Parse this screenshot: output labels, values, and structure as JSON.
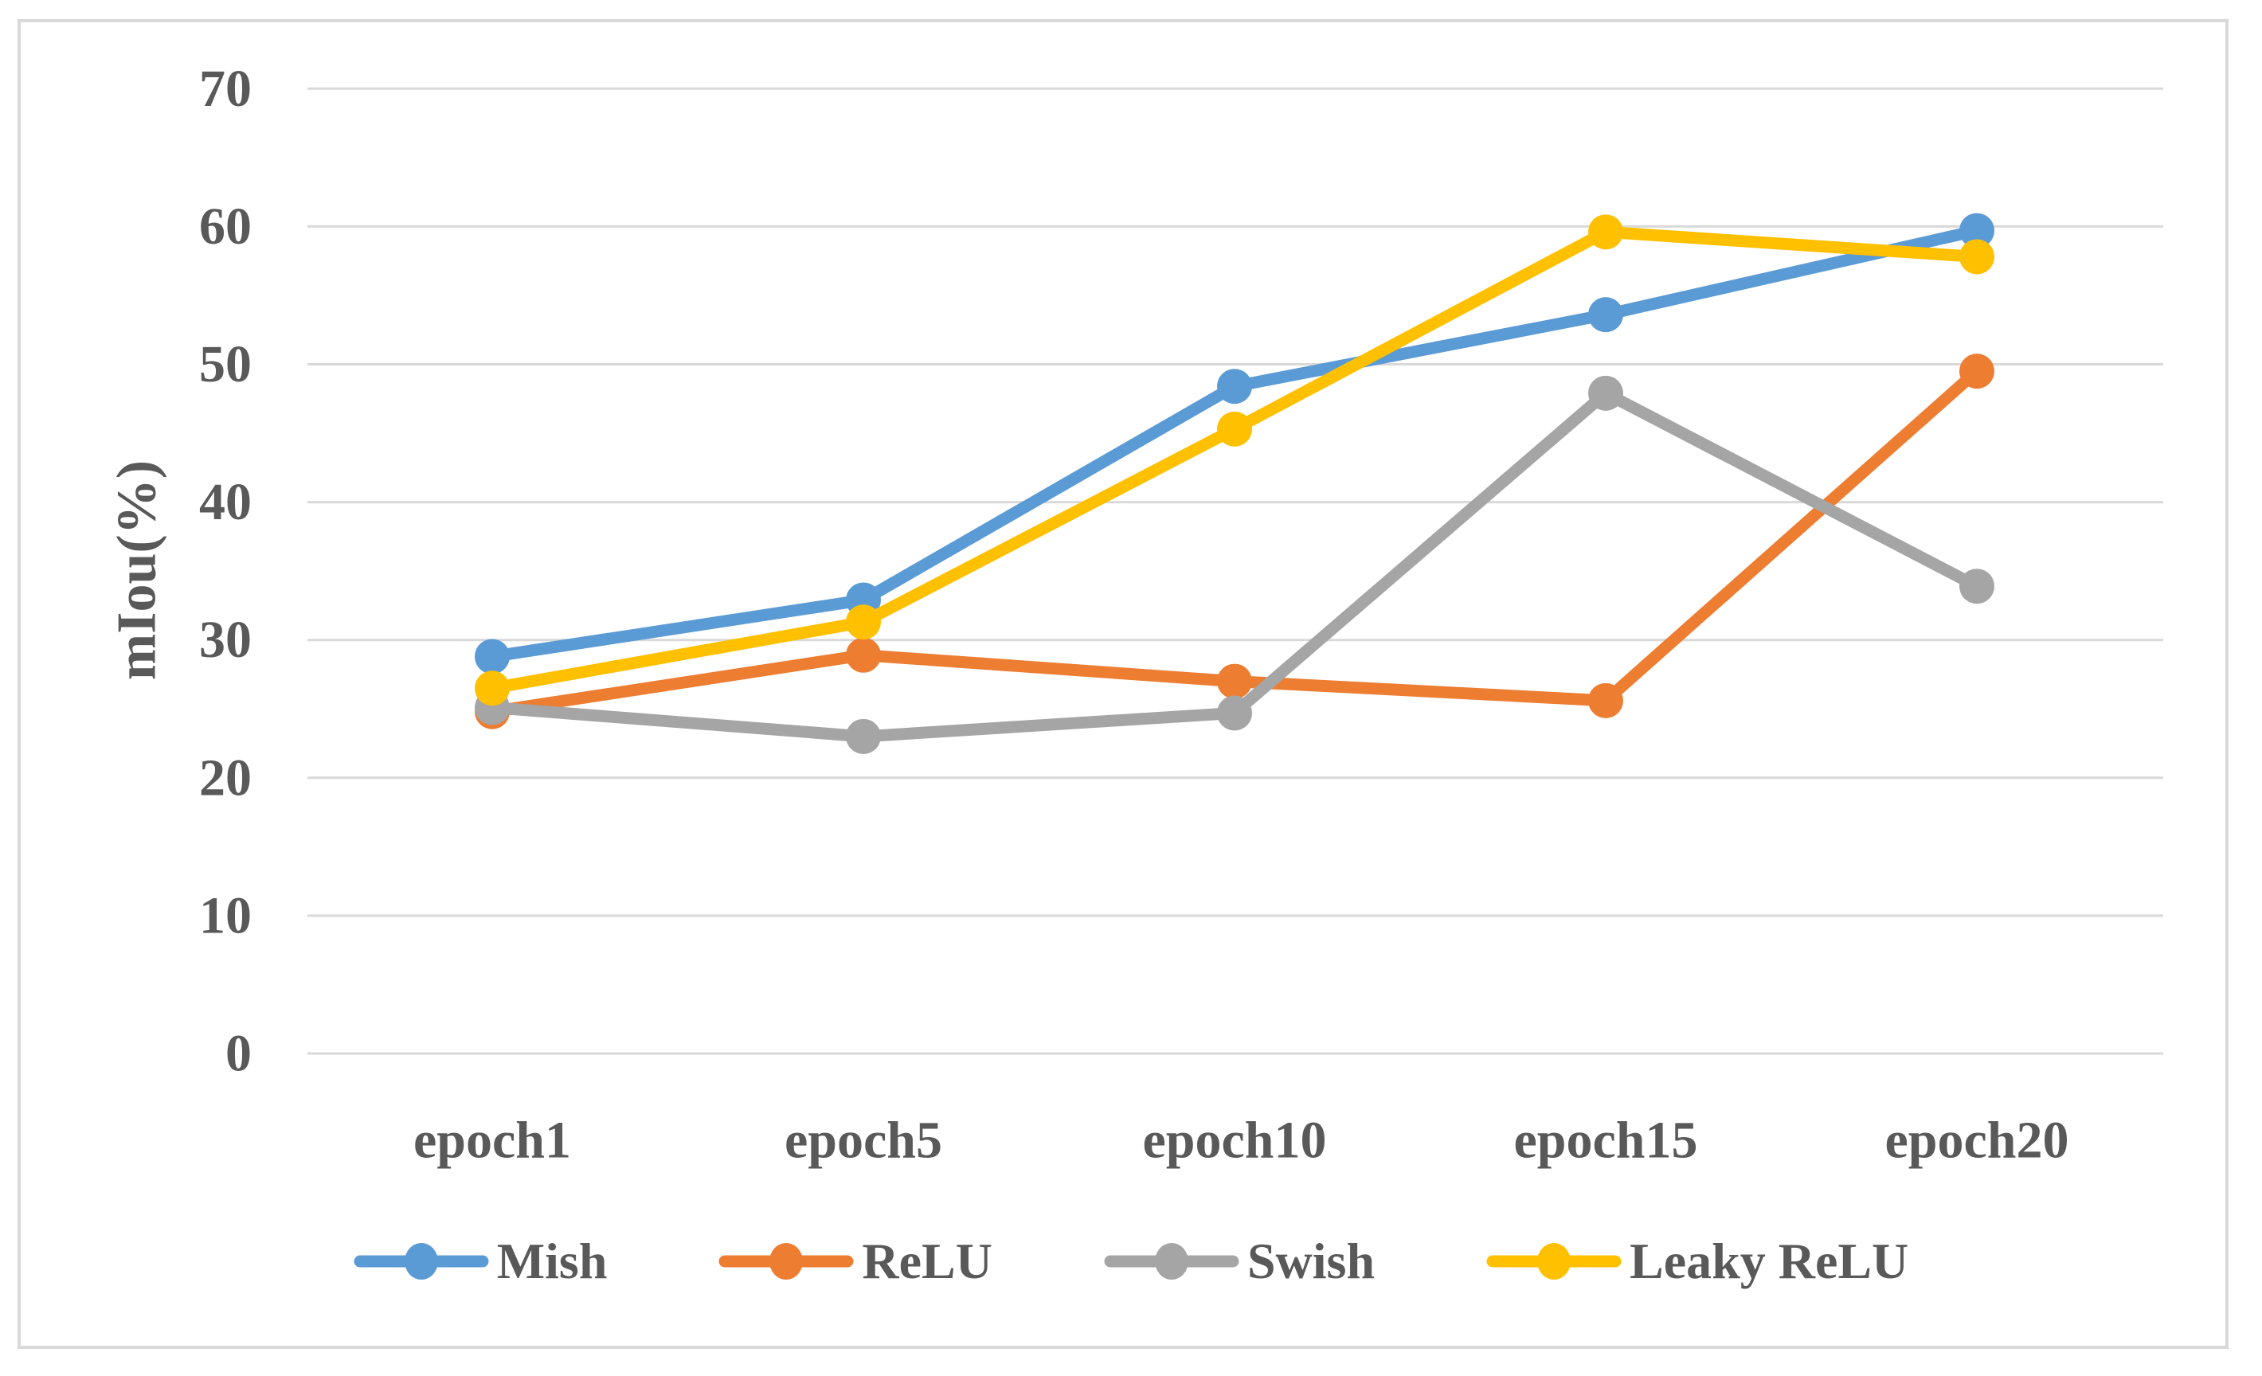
{
  "figure": {
    "background": "#ffffff",
    "border_color": "#d9d9d9",
    "gridline_color": "#d9d9d9",
    "text_color": "#595959"
  },
  "chart_data": {
    "type": "line",
    "title": "",
    "xlabel": "",
    "ylabel": "mIou(%)",
    "categories": [
      "epoch1",
      "epoch5",
      "epoch10",
      "epoch15",
      "epoch20"
    ],
    "series": [
      {
        "name": "Mish",
        "color": "#5B9BD5",
        "values": [
          28.8,
          32.9,
          48.4,
          53.6,
          59.7
        ]
      },
      {
        "name": "ReLU",
        "color": "#ED7D31",
        "values": [
          24.8,
          28.9,
          27.0,
          25.6,
          49.5
        ]
      },
      {
        "name": "Swish",
        "color": "#A5A5A5",
        "values": [
          25.1,
          23.0,
          24.7,
          47.9,
          33.9
        ]
      },
      {
        "name": "Leaky ReLU",
        "color": "#FFC000",
        "values": [
          26.5,
          31.3,
          45.3,
          59.6,
          57.8
        ]
      }
    ],
    "ylim": [
      0,
      70
    ],
    "yticks": [
      0,
      10,
      20,
      30,
      40,
      50,
      60,
      70
    ],
    "grid": true,
    "legend_position": "bottom",
    "marker": "circle"
  }
}
